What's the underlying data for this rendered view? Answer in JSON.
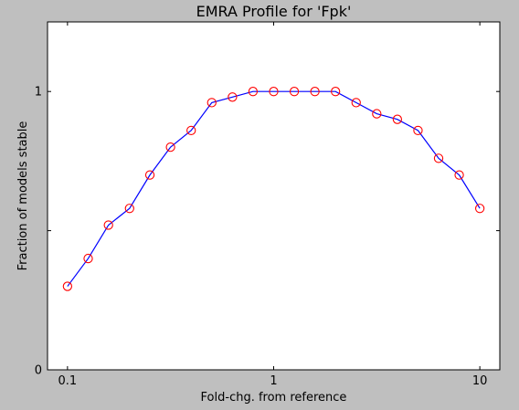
{
  "chart_data": {
    "type": "line",
    "title": "EMRA Profile for 'Fpk'",
    "xlabel": "Fold-chg. from reference",
    "ylabel": "Fraction of models stable",
    "xscale": "log",
    "xlim": [
      0.08,
      12.5
    ],
    "ylim": [
      0,
      1.25
    ],
    "xticks": [
      0.1,
      1,
      10
    ],
    "xtick_labels": [
      "0.1",
      "1",
      "10"
    ],
    "yticks": [
      0,
      0.5,
      1
    ],
    "ytick_labels": [
      "0",
      "",
      "1"
    ],
    "grid": false,
    "legend": "none",
    "series": [
      {
        "line_color": "#0000ff",
        "marker": "open-circle",
        "marker_color": "#ff0000",
        "x": [
          0.1,
          0.126,
          0.158,
          0.2,
          0.251,
          0.316,
          0.398,
          0.501,
          0.631,
          0.794,
          1.0,
          1.259,
          1.585,
          1.995,
          2.512,
          3.162,
          3.981,
          5.012,
          6.31,
          7.943,
          10.0
        ],
        "y": [
          0.3,
          0.4,
          0.52,
          0.58,
          0.7,
          0.8,
          0.86,
          0.96,
          0.98,
          1.0,
          1.0,
          1.0,
          1.0,
          1.0,
          0.96,
          0.92,
          0.9,
          0.86,
          0.76,
          0.7,
          0.58
        ]
      }
    ]
  }
}
